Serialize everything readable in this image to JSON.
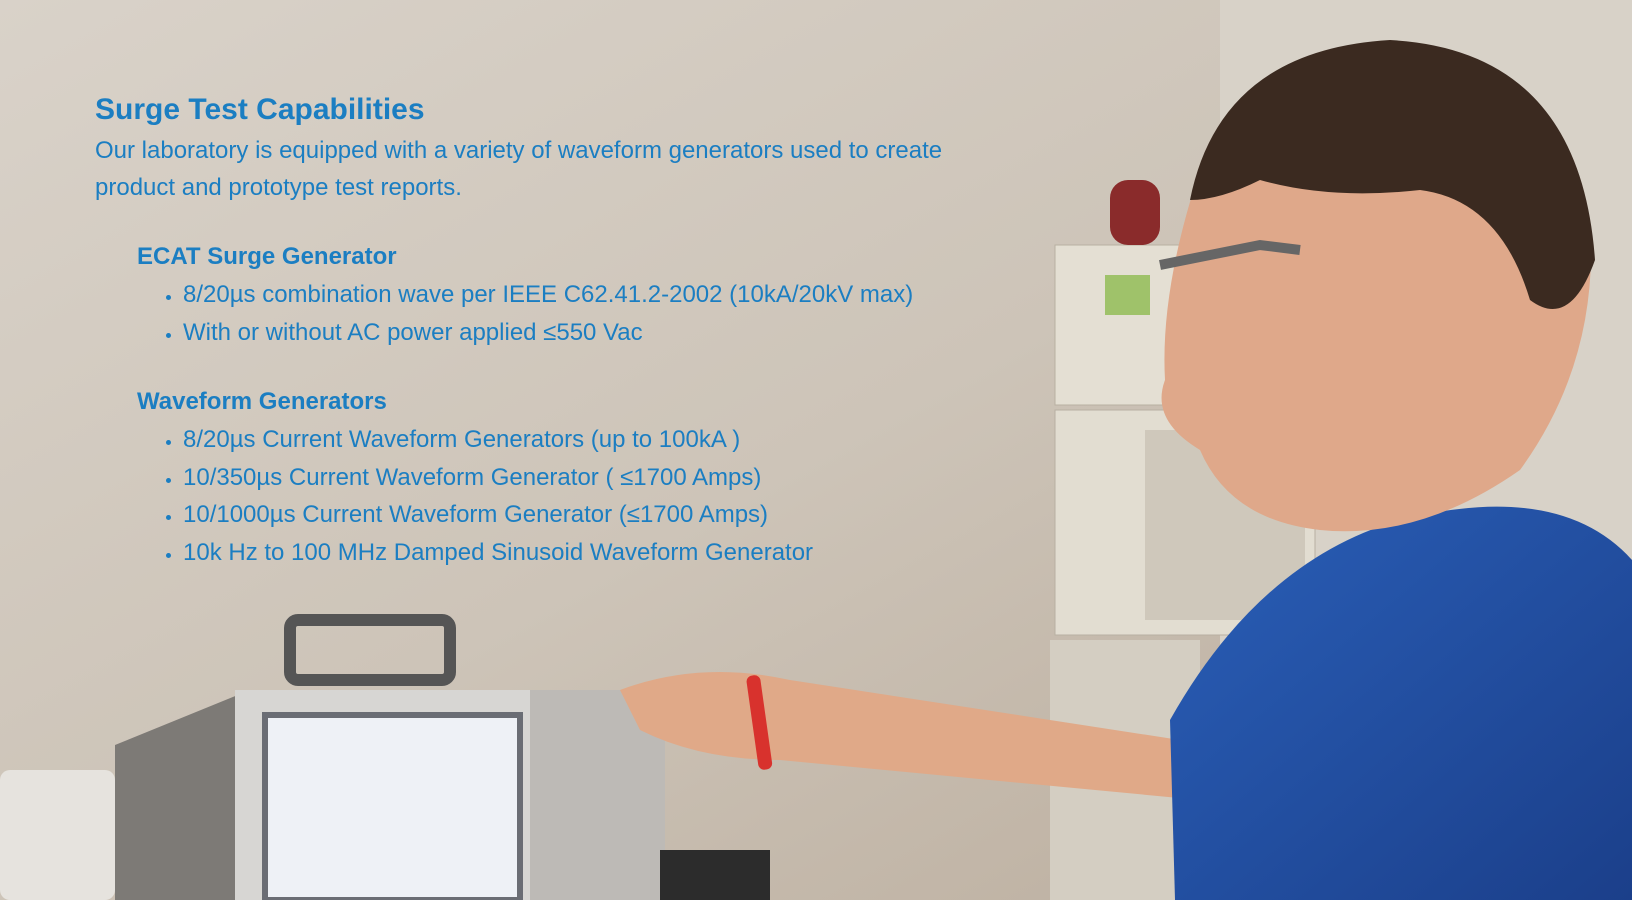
{
  "header": {
    "title": "Surge Test Capabilities",
    "intro": "Our laboratory is equipped with a variety of waveform generators used to create product and prototype test reports."
  },
  "sections": [
    {
      "heading": "ECAT Surge Generator",
      "items": [
        "8/20µs combination wave per IEEE C62.41.2-2002 (10kA/20kV max)",
        "With or without AC power applied ≤550 Vac"
      ]
    },
    {
      "heading": "Waveform Generators",
      "items": [
        "8/20µs Current Waveform Generators (up to 100kA )",
        "10/350µs Current Waveform Generator ( ≤1700 Amps)",
        "10/1000µs Current Waveform Generator (≤1700 Amps)",
        "10k Hz to 100 MHz Damped Sinusoid Waveform Generator"
      ]
    }
  ]
}
